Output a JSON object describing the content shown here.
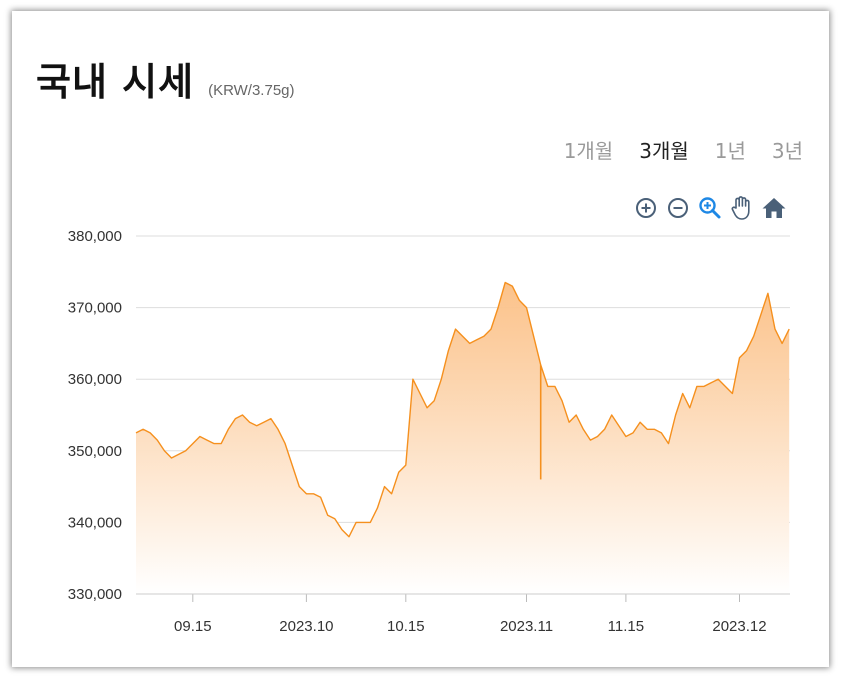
{
  "header": {
    "title": "국내 시세",
    "unit": "(KRW/3.75g)"
  },
  "range_tabs": [
    {
      "label": "1개월",
      "active": false
    },
    {
      "label": "3개월",
      "active": true
    },
    {
      "label": "1년",
      "active": false
    },
    {
      "label": "3년",
      "active": false
    }
  ],
  "toolbar": {
    "icons": [
      "zoom-in-icon",
      "zoom-out-icon",
      "zoom-select-icon",
      "pan-hand-icon",
      "reset-home-icon"
    ],
    "active_color": "#1e88e5",
    "icon_color": "#4a6078"
  },
  "colors": {
    "line": "#f5901e",
    "fill_top": "#fbbf84",
    "fill_bottom": "#ffffff",
    "grid": "#dddddd"
  },
  "chart_data": {
    "type": "area",
    "title": "",
    "xlabel": "",
    "ylabel": "",
    "ylim": [
      330000,
      380000
    ],
    "y_ticks": [
      "330,000",
      "340,000",
      "350,000",
      "360,000",
      "370,000",
      "380,000"
    ],
    "x_ticks": [
      "09.15",
      "2023.10",
      "10.15",
      "2023.11",
      "11.15",
      "2023.12"
    ],
    "x_tick_dates": [
      "2023-09-15",
      "2023-10-01",
      "2023-10-15",
      "2023-11-01",
      "2023-11-15",
      "2023-12-01"
    ],
    "grid": true,
    "legend": "none",
    "series": [
      {
        "x": [
          "2023-09-07",
          "2023-09-08",
          "2023-09-09",
          "2023-09-10",
          "2023-09-11",
          "2023-09-12",
          "2023-09-13",
          "2023-09-14",
          "2023-09-15",
          "2023-09-16",
          "2023-09-17",
          "2023-09-18",
          "2023-09-19",
          "2023-09-20",
          "2023-09-21",
          "2023-09-22",
          "2023-09-23",
          "2023-09-24",
          "2023-09-25",
          "2023-09-26",
          "2023-09-27",
          "2023-09-28",
          "2023-09-29",
          "2023-09-30",
          "2023-10-01",
          "2023-10-02",
          "2023-10-03",
          "2023-10-04",
          "2023-10-05",
          "2023-10-06",
          "2023-10-07",
          "2023-10-08",
          "2023-10-09",
          "2023-10-10",
          "2023-10-11",
          "2023-10-12",
          "2023-10-13",
          "2023-10-14",
          "2023-10-15",
          "2023-10-16",
          "2023-10-17",
          "2023-10-18",
          "2023-10-19",
          "2023-10-20",
          "2023-10-21",
          "2023-10-22",
          "2023-10-23",
          "2023-10-24",
          "2023-10-25",
          "2023-10-26",
          "2023-10-27",
          "2023-10-28",
          "2023-10-29",
          "2023-10-30",
          "2023-10-31",
          "2023-11-01",
          "2023-11-02",
          "2023-11-03",
          "2023-11-04",
          "2023-11-05",
          "2023-11-06",
          "2023-11-07",
          "2023-11-08",
          "2023-11-09",
          "2023-11-10",
          "2023-11-11",
          "2023-11-12",
          "2023-11-13",
          "2023-11-14",
          "2023-11-15",
          "2023-11-16",
          "2023-11-17",
          "2023-11-18",
          "2023-11-19",
          "2023-11-20",
          "2023-11-21",
          "2023-11-22",
          "2023-11-23",
          "2023-11-24",
          "2023-11-25",
          "2023-11-26",
          "2023-11-27",
          "2023-11-28",
          "2023-11-29",
          "2023-11-30",
          "2023-12-01",
          "2023-12-02",
          "2023-12-03",
          "2023-12-04",
          "2023-12-05",
          "2023-12-06",
          "2023-12-07",
          "2023-12-08"
        ],
        "y": [
          352500,
          353000,
          352500,
          351500,
          350000,
          349000,
          349500,
          350000,
          351000,
          352000,
          351500,
          351000,
          351000,
          353000,
          354500,
          355000,
          354000,
          353500,
          354000,
          354500,
          353000,
          351000,
          348000,
          345000,
          344000,
          344000,
          343500,
          341000,
          340500,
          339000,
          338000,
          340000,
          340000,
          340000,
          342000,
          345000,
          344000,
          347000,
          348000,
          360000,
          358000,
          356000,
          357000,
          360000,
          364000,
          367000,
          366000,
          365000,
          365500,
          366000,
          367000,
          370000,
          373500,
          373000,
          371000,
          370000,
          366000,
          362000,
          359000,
          359000,
          357000,
          354000,
          355000,
          353000,
          351500,
          352000,
          353000,
          355000,
          353500,
          352000,
          352500,
          354000,
          353000,
          353000,
          352500,
          351000,
          355000,
          358000,
          356000,
          359000,
          359000,
          359500,
          360000,
          359000,
          358000,
          363000,
          364000,
          366000,
          369000,
          372000,
          367000,
          365000,
          367000
        ]
      }
    ],
    "annotations": [
      {
        "date": "2023-11-03",
        "low": 346000,
        "note": "single-day dip spike"
      }
    ]
  }
}
